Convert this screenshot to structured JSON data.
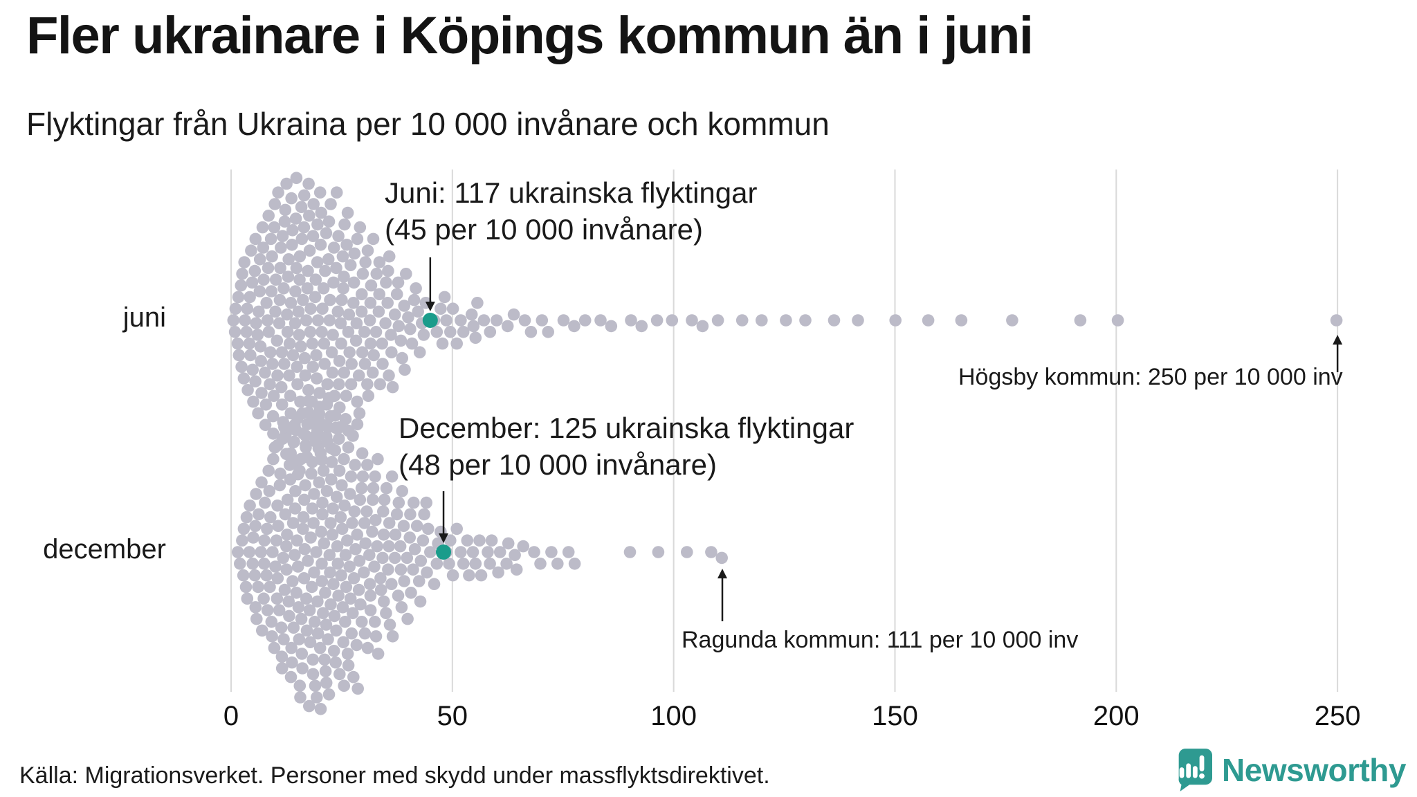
{
  "title": "Fler ukrainare i Köpings kommun än i juni",
  "subtitle": "Flyktingar från Ukraina per 10 000 invånare och kommun",
  "footer": {
    "source": "Källa: Migrationsverket. Personer med skydd under massflyktsdirektivet.",
    "brand": "Newsworthy"
  },
  "colors": {
    "dot": "#bcbbc8",
    "highlight": "#1a9c8b",
    "grid": "#d9d9d9",
    "arrow": "#1a1a1a",
    "tick_text": "#111111",
    "brand_teal": "#2e9a91"
  },
  "chart_data": {
    "type": "scatter",
    "subtype": "beeswarm",
    "unit": "flyktingar från Ukraina per 10 000 invånare, per kommun",
    "x_ticks": [
      0,
      50,
      100,
      150,
      200,
      250
    ],
    "x_tick_labels": [
      "0",
      "50",
      "100",
      "150",
      "200",
      "250"
    ],
    "xlim": [
      0,
      260
    ],
    "grid": true,
    "rows": [
      {
        "label": "juni",
        "annotation": {
          "lines": [
            "Juni: 117 ukrainska flyktingar",
            "(45 per 10 000 invånare)"
          ]
        },
        "highlight": {
          "municipality": "Köpings kommun",
          "value": 45,
          "refugees": 117
        },
        "outlier": {
          "municipality": "Högsby kommun",
          "value": 250,
          "annotation": "Högsby kommun: 250 per 10 000 inv"
        },
        "points": [
          [
            1,
            4
          ],
          [
            2,
            4
          ],
          [
            3,
            5
          ],
          [
            4,
            5
          ],
          [
            5,
            6
          ],
          [
            6,
            6
          ],
          [
            7,
            7
          ],
          [
            8,
            7
          ],
          [
            9,
            8
          ],
          [
            10,
            8
          ],
          [
            11,
            8
          ],
          [
            12,
            9
          ],
          [
            13,
            9
          ],
          [
            14,
            9
          ],
          [
            15,
            10
          ],
          [
            16,
            9
          ],
          [
            17,
            9
          ],
          [
            18,
            9
          ],
          [
            19,
            8
          ],
          [
            20,
            9
          ],
          [
            21,
            8
          ],
          [
            22,
            8
          ],
          [
            23,
            8
          ],
          [
            24,
            7
          ],
          [
            25,
            7
          ],
          [
            26,
            7
          ],
          [
            27,
            6
          ],
          [
            28,
            6
          ],
          [
            29,
            5
          ],
          [
            30,
            6
          ],
          [
            31,
            5
          ],
          [
            32,
            5
          ],
          [
            33,
            4
          ],
          [
            34,
            4
          ],
          [
            35,
            4
          ],
          [
            36,
            4
          ],
          [
            37,
            3
          ],
          [
            38,
            3
          ],
          [
            39,
            3
          ],
          [
            40,
            3
          ],
          [
            41,
            2
          ],
          [
            42,
            2
          ],
          [
            43,
            2
          ],
          [
            44,
            2
          ],
          [
            46,
            2
          ],
          [
            47,
            1
          ],
          [
            48,
            2
          ],
          [
            49,
            1
          ],
          [
            50,
            2
          ],
          [
            51,
            1
          ],
          [
            52,
            2
          ],
          [
            54,
            1
          ],
          [
            55,
            2
          ],
          [
            56,
            1
          ],
          [
            57,
            1
          ],
          [
            59,
            1
          ],
          [
            60,
            1
          ],
          [
            62,
            1
          ],
          [
            64,
            1
          ],
          [
            66,
            1
          ],
          [
            68,
            1
          ],
          [
            70,
            1
          ],
          [
            72,
            1
          ],
          [
            75,
            1
          ],
          [
            78,
            1
          ],
          [
            80,
            1
          ],
          [
            83,
            1
          ],
          [
            86,
            1
          ],
          [
            90,
            1
          ],
          [
            93,
            1
          ],
          [
            96,
            1
          ],
          [
            100,
            1
          ],
          [
            104,
            1
          ],
          [
            107,
            1
          ],
          [
            110,
            1
          ],
          [
            115,
            1
          ],
          [
            120,
            1
          ],
          [
            125,
            1
          ],
          [
            130,
            1
          ],
          [
            136,
            1
          ],
          [
            142,
            1
          ],
          [
            150,
            1
          ],
          [
            158,
            1
          ],
          [
            165,
            1
          ],
          [
            176,
            1
          ],
          [
            192,
            1
          ],
          [
            200,
            1
          ],
          [
            250,
            1
          ]
        ]
      },
      {
        "label": "december",
        "annotation": {
          "lines": [
            "December: 125 ukrainska flyktingar",
            "(48 per 10 000 invånare)"
          ]
        },
        "highlight": {
          "municipality": "Köpings kommun",
          "value": 48,
          "refugees": 125
        },
        "outlier": {
          "municipality": "Ragunda kommun",
          "value": 111,
          "annotation": "Ragunda kommun: 111 per 10 000 inv"
        },
        "points": [
          [
            2,
            3
          ],
          [
            3,
            3
          ],
          [
            4,
            4
          ],
          [
            5,
            4
          ],
          [
            6,
            5
          ],
          [
            7,
            5
          ],
          [
            8,
            6
          ],
          [
            9,
            6
          ],
          [
            10,
            7
          ],
          [
            11,
            7
          ],
          [
            12,
            8
          ],
          [
            13,
            8
          ],
          [
            14,
            9
          ],
          [
            15,
            9
          ],
          [
            16,
            9
          ],
          [
            17,
            10
          ],
          [
            18,
            10
          ],
          [
            19,
            10
          ],
          [
            20,
            10
          ],
          [
            21,
            10
          ],
          [
            22,
            10
          ],
          [
            23,
            9
          ],
          [
            24,
            9
          ],
          [
            25,
            9
          ],
          [
            26,
            8
          ],
          [
            27,
            8
          ],
          [
            28,
            8
          ],
          [
            29,
            7
          ],
          [
            30,
            7
          ],
          [
            31,
            6
          ],
          [
            32,
            6
          ],
          [
            33,
            6
          ],
          [
            34,
            5
          ],
          [
            35,
            5
          ],
          [
            36,
            5
          ],
          [
            37,
            4
          ],
          [
            38,
            4
          ],
          [
            39,
            4
          ],
          [
            40,
            4
          ],
          [
            41,
            3
          ],
          [
            42,
            3
          ],
          [
            43,
            3
          ],
          [
            44,
            3
          ],
          [
            45,
            2
          ],
          [
            46,
            2
          ],
          [
            47,
            2
          ],
          [
            49,
            2
          ],
          [
            50,
            2
          ],
          [
            51,
            1
          ],
          [
            52,
            2
          ],
          [
            53,
            1
          ],
          [
            54,
            1
          ],
          [
            55,
            2
          ],
          [
            56,
            1
          ],
          [
            57,
            1
          ],
          [
            58,
            2
          ],
          [
            59,
            1
          ],
          [
            60,
            1
          ],
          [
            61,
            1
          ],
          [
            62,
            1
          ],
          [
            63,
            1
          ],
          [
            64,
            1
          ],
          [
            65,
            1
          ],
          [
            66,
            1
          ],
          [
            68,
            1
          ],
          [
            70,
            1
          ],
          [
            72,
            1
          ],
          [
            74,
            1
          ],
          [
            76,
            1
          ],
          [
            78,
            1
          ],
          [
            90,
            1
          ],
          [
            97,
            1
          ],
          [
            103,
            1
          ],
          [
            108,
            1
          ],
          [
            111,
            1
          ]
        ]
      }
    ]
  }
}
